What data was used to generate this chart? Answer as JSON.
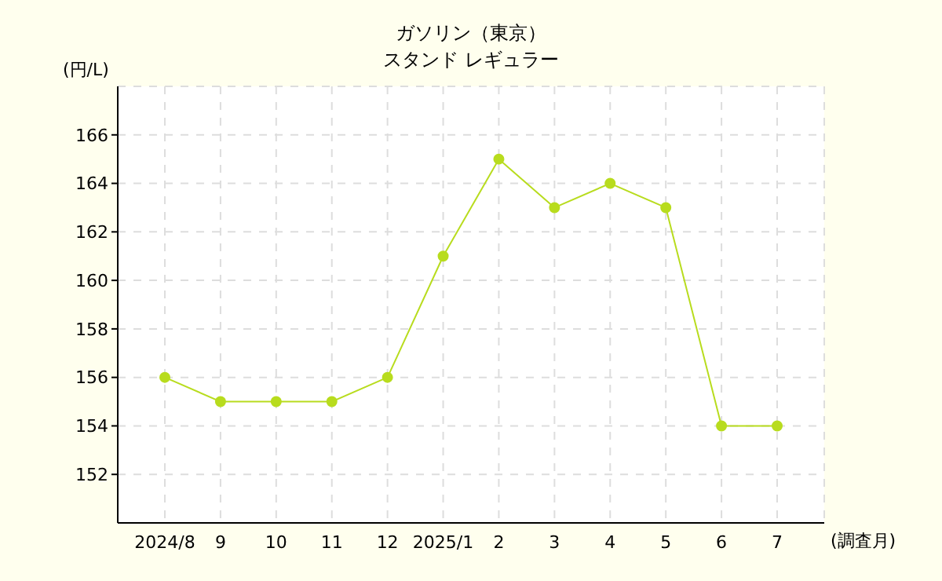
{
  "chart_data": {
    "type": "line",
    "title": "ガソリン（東京）",
    "subtitle": "スタンド レギュラー",
    "ylabel": "(円/L)",
    "xlabel": "(調査月)",
    "categories": [
      "2024/8",
      "9",
      "10",
      "11",
      "12",
      "2025/1",
      "2",
      "3",
      "4",
      "5",
      "6",
      "7"
    ],
    "series": [
      {
        "color": "#b8dc1e",
        "values": [
          156,
          155,
          155,
          155,
          156,
          161,
          165,
          163,
          164,
          163,
          154,
          154
        ]
      }
    ],
    "ylim": [
      150,
      168
    ],
    "yticks": [
      152,
      154,
      156,
      158,
      160,
      162,
      164,
      166
    ],
    "grid": true,
    "marker": "circle",
    "line_style": "solid",
    "legend": false
  }
}
